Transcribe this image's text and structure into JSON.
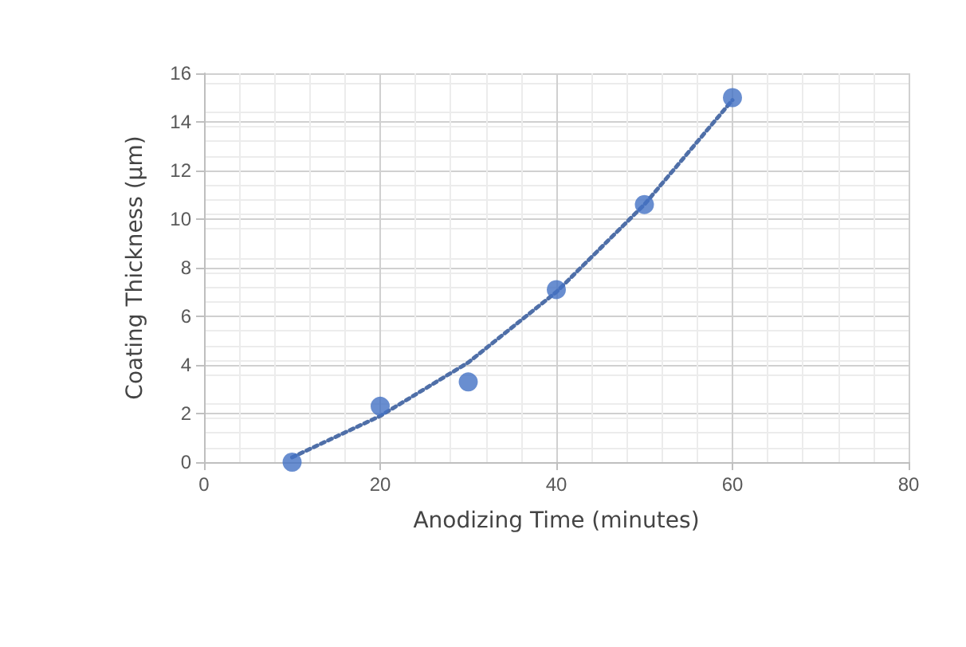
{
  "chart_data": {
    "type": "scatter",
    "xlabel": "Anodizing Time (minutes)",
    "ylabel": "Coating Thickness (µm)",
    "x": [
      10,
      20,
      30,
      40,
      50,
      60
    ],
    "xlim": [
      0,
      80
    ],
    "xticks": [
      0,
      20,
      40,
      60,
      80
    ],
    "ylim": [
      0,
      16
    ],
    "yticks": [
      0,
      2,
      4,
      6,
      8,
      10,
      12,
      14,
      16
    ],
    "grid": true,
    "marker": "circle",
    "series": [
      {
        "color": "#4472c4",
        "values": [
          0,
          2.3,
          3.3,
          7.1,
          10.6,
          15
        ]
      },
      {
        "type": "line",
        "color": "#4f6fa8",
        "line_style": "dotted",
        "marker": "none",
        "values": [
          0.2,
          1.9,
          4.1,
          7,
          10.6,
          14.9
        ]
      }
    ]
  }
}
